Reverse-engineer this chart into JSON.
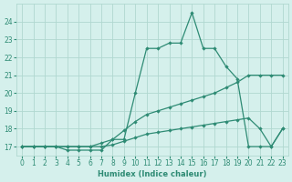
{
  "xlabel": "Humidex (Indice chaleur)",
  "x_values": [
    0,
    1,
    2,
    3,
    4,
    5,
    6,
    7,
    8,
    9,
    10,
    11,
    12,
    13,
    14,
    15,
    16,
    17,
    18,
    19,
    20,
    21,
    22,
    23
  ],
  "line_zigzag": [
    17,
    17,
    17,
    17,
    16.8,
    16.8,
    16.8,
    16.8,
    17.4,
    17.4,
    20.0,
    22.5,
    22.5,
    22.8,
    22.8,
    24.5,
    22.5,
    22.5,
    21.5,
    20.8,
    17.0,
    17.0,
    17.0,
    18.0
  ],
  "line_upper": [
    17,
    17,
    17,
    17,
    17.0,
    17.0,
    17.0,
    17.2,
    17.4,
    17.9,
    18.4,
    18.8,
    19.0,
    19.2,
    19.4,
    19.6,
    19.8,
    20.0,
    20.3,
    20.6,
    21.0,
    21.0,
    21.0,
    21.0
  ],
  "line_lower": [
    17,
    17,
    17,
    17,
    17.0,
    17.0,
    17.0,
    17.0,
    17.1,
    17.3,
    17.5,
    17.7,
    17.8,
    17.9,
    18.0,
    18.1,
    18.2,
    18.3,
    18.4,
    18.5,
    18.6,
    18.0,
    17.0,
    18.0
  ],
  "line_color": "#2e8b74",
  "bg_color": "#d5f0ec",
  "grid_color": "#b0d8d0",
  "ylim": [
    16.5,
    25.0
  ],
  "xlim": [
    -0.5,
    23.5
  ],
  "yticks": [
    17,
    18,
    19,
    20,
    21,
    22,
    23,
    24
  ],
  "xticks": [
    0,
    1,
    2,
    3,
    4,
    5,
    6,
    7,
    8,
    9,
    10,
    11,
    12,
    13,
    14,
    15,
    16,
    17,
    18,
    19,
    20,
    21,
    22,
    23
  ]
}
